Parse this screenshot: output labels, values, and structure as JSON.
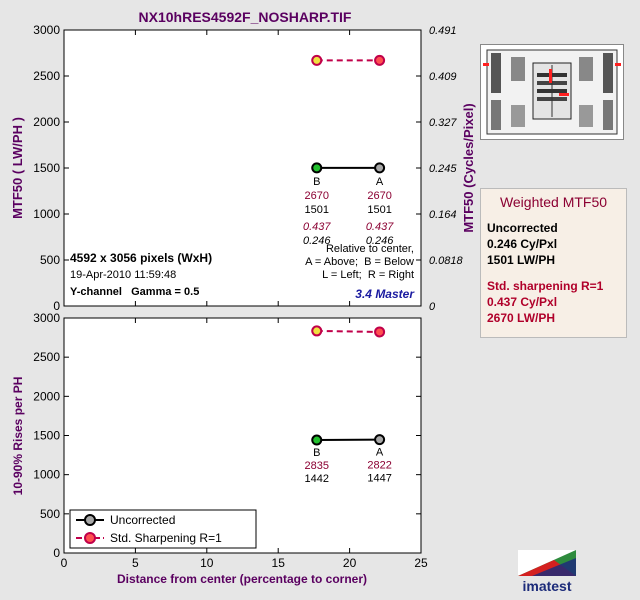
{
  "header": {
    "title": "NX10hRES4592F_NOSHARP.TIF"
  },
  "chart_data": [
    {
      "type": "line",
      "x": [
        17.7,
        22.1
      ],
      "xlim": [
        0,
        25
      ],
      "xticks": [
        "0",
        "5",
        "10",
        "15",
        "20",
        "25"
      ],
      "ylim": [
        0,
        3000
      ],
      "yticks": [
        "0",
        "500",
        "1000",
        "1500",
        "2000",
        "2500",
        "3000"
      ],
      "ylabel": "MTF50 ( LW/PH )",
      "y2label": "MTF50 (Cycles/Pixel)",
      "y2ticks": [
        "0",
        "0.0818",
        "0.164",
        "0.245",
        "0.327",
        "0.409",
        "0.491"
      ],
      "series": [
        {
          "name": "Uncorrected",
          "values": [
            1501,
            1501
          ],
          "color": "#000000",
          "fill": "#22c02e"
        },
        {
          "name": "Std. Sharpening R=1",
          "values": [
            2670,
            2670
          ],
          "color": "#c0004a",
          "fill": "#f0e040"
        }
      ],
      "point_labels": [
        {
          "pos": "B",
          "lwph_sharp": "2670",
          "lwph": "1501",
          "cypx_sharp": "0.437",
          "cypx": "0.246"
        },
        {
          "pos": "A",
          "lwph_sharp": "2670",
          "lwph": "1501",
          "cypx_sharp": "0.437",
          "cypx": "0.246"
        }
      ],
      "info": {
        "size": "4592 x 3056 pixels (WxH)",
        "date": "19-Apr-2010 11:59:48",
        "channel": "Y-channel   Gamma = 0.5",
        "rel1": "Relative to center,",
        "rel2": "A = Above;  B = Below",
        "rel3": "L = Left;  R = Right",
        "version": "3.4 Master"
      }
    },
    {
      "type": "line",
      "x": [
        17.7,
        22.1
      ],
      "xlim": [
        0,
        25
      ],
      "xticks": [
        "0",
        "5",
        "10",
        "15",
        "20",
        "25"
      ],
      "xlabel": "Distance from center (percentage to corner)",
      "ylim": [
        0,
        3000
      ],
      "yticks": [
        "0",
        "500",
        "1000",
        "1500",
        "2000",
        "2500",
        "3000"
      ],
      "ylabel": "10-90% Rises per PH",
      "series": [
        {
          "name": "Uncorrected",
          "values": [
            1442,
            1447
          ],
          "color": "#000000",
          "fill": "#22c02e"
        },
        {
          "name": "Std. Sharpening R=1",
          "values": [
            2835,
            2822
          ],
          "color": "#c0004a",
          "fill": "#f0e040"
        }
      ],
      "point_labels": [
        {
          "pos": "B",
          "sharp": "2835",
          "unc": "1442"
        },
        {
          "pos": "A",
          "sharp": "2822",
          "unc": "1447"
        }
      ],
      "legend": {
        "placement": "bottom-left",
        "items": [
          "Uncorrected",
          "Std. Sharpening R=1"
        ]
      }
    }
  ],
  "summary": {
    "title": "Weighted MTF50",
    "unc_head": "Uncorrected",
    "unc_cy": "0.246 Cy/Pxl",
    "unc_lw": "1501 LW/PH",
    "sharp_head": "Std. sharpening R=1",
    "sharp_cy": "0.437 Cy/Pxl",
    "sharp_lw": "2670 LW/PH"
  },
  "logo": {
    "text": "imatest"
  }
}
